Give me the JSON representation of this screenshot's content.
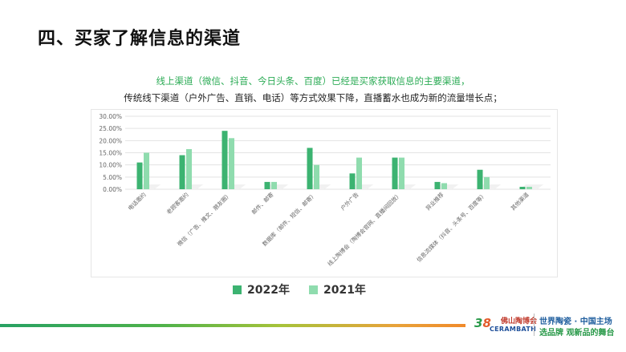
{
  "page_title": "四、买家了解信息的渠道",
  "headline": "线上渠道（微信、抖音、今日头条、百度）已经是买家获取信息的主要渠道，",
  "subline": "传统线下渠道（户外广告、直销、电话）等方式效果下降，直播蓄水也成为新的流量增长点；",
  "footer": {
    "logo_mark": "3",
    "logo_mark_b": "8",
    "logo_name_cn": "佛山陶博会",
    "logo_name_en": "CERAMBATH",
    "slogan_line1": "世界陶瓷 · 中国主场",
    "slogan_line2": "选品牌 观新品的舞台"
  },
  "colors": {
    "series_2022": "#3cb371",
    "series_2021": "#8fdcae",
    "accent_green": "#2bab55",
    "gridline": "#e3e3e3",
    "axis_text": "#666666"
  },
  "chart_data": {
    "type": "bar",
    "title": "",
    "xlabel": "",
    "ylabel": "",
    "categories": [
      "电话邀约",
      "老顾客邀约",
      "微信（广告、推文、朋友圈）",
      "邮件、邮寄",
      "数据库（邮件、短信、邮寄）",
      "户外广告",
      "线上陶博会（陶博会官网、直播间回放）",
      "异业推荐",
      "信息流媒体（抖音、头条号、百度等）",
      "其他渠道"
    ],
    "series": [
      {
        "name": "2022年",
        "values": [
          11,
          14,
          24,
          3,
          17,
          6.5,
          13,
          3,
          8,
          1
        ]
      },
      {
        "name": "2021年",
        "values": [
          15,
          16.5,
          21,
          3,
          10,
          13,
          13,
          2.5,
          5,
          1
        ]
      }
    ],
    "ylim": [
      0,
      30
    ],
    "yticks": [
      "0.00%",
      "5.00%",
      "10.00%",
      "15.00%",
      "20.00%",
      "25.00%",
      "30.00%"
    ],
    "grid": true,
    "legend_position": "bottom"
  }
}
